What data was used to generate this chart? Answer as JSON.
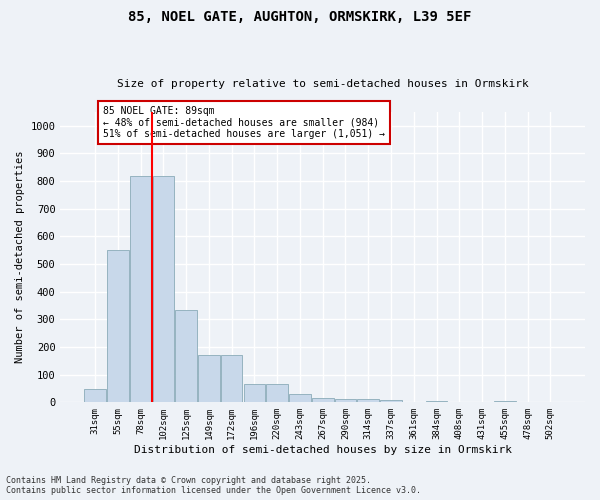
{
  "title_line1": "85, NOEL GATE, AUGHTON, ORMSKIRK, L39 5EF",
  "title_line2": "Size of property relative to semi-detached houses in Ormskirk",
  "xlabel": "Distribution of semi-detached houses by size in Ormskirk",
  "ylabel": "Number of semi-detached properties",
  "categories": [
    "31sqm",
    "55sqm",
    "78sqm",
    "102sqm",
    "125sqm",
    "149sqm",
    "172sqm",
    "196sqm",
    "220sqm",
    "243sqm",
    "267sqm",
    "290sqm",
    "314sqm",
    "337sqm",
    "361sqm",
    "384sqm",
    "408sqm",
    "431sqm",
    "455sqm",
    "478sqm",
    "502sqm"
  ],
  "values": [
    50,
    550,
    820,
    820,
    335,
    170,
    170,
    65,
    65,
    30,
    15,
    13,
    13,
    10,
    0,
    5,
    0,
    0,
    5,
    0,
    0
  ],
  "bar_color": "#c8d8ea",
  "bar_edge_color": "#8aabb8",
  "red_line_index": 2.5,
  "annotation_text": "85 NOEL GATE: 89sqm\n← 48% of semi-detached houses are smaller (984)\n51% of semi-detached houses are larger (1,051) →",
  "annotation_box_color": "#ffffff",
  "annotation_box_edge": "#cc0000",
  "ylim": [
    0,
    1050
  ],
  "yticks": [
    0,
    100,
    200,
    300,
    400,
    500,
    600,
    700,
    800,
    900,
    1000
  ],
  "background_color": "#eef2f7",
  "grid_color": "#ffffff",
  "footer": "Contains HM Land Registry data © Crown copyright and database right 2025.\nContains public sector information licensed under the Open Government Licence v3.0."
}
